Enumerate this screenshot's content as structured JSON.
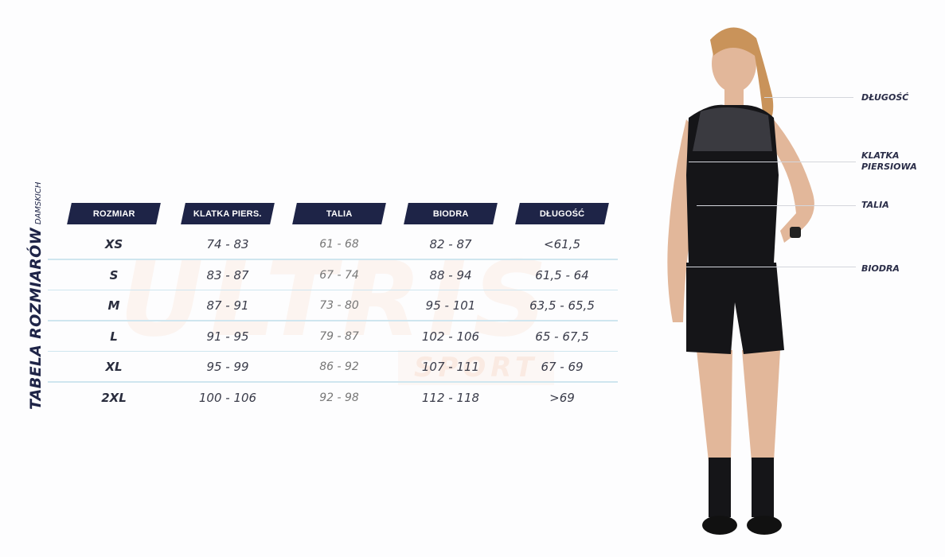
{
  "title": {
    "main": "TABELA ROZMIARÓW",
    "sub": "DAMSKICH"
  },
  "watermark": {
    "main": "ULTRIS",
    "sub": "SPORT"
  },
  "table": {
    "headers": [
      "ROZMIAR",
      "KLATKA PIERS.",
      "TALIA",
      "BIODRA",
      "DŁUGOŚĆ"
    ],
    "rows": [
      [
        "XS",
        "74 - 83",
        "61 - 68",
        "82 - 87",
        "<61,5"
      ],
      [
        "S",
        "83 - 87",
        "67 - 74",
        "88 - 94",
        "61,5 - 64"
      ],
      [
        "M",
        "87 - 91",
        "73 - 80",
        "95 - 101",
        "63,5 - 65,5"
      ],
      [
        "L",
        "91 - 95",
        "79 - 87",
        "102 - 106",
        "65 - 67,5"
      ],
      [
        "XL",
        "95 - 99",
        "86 - 92",
        "107 - 111",
        "67 - 69"
      ],
      [
        "2XL",
        "100 - 106",
        "92 - 98",
        "112 - 118",
        ">69"
      ]
    ]
  },
  "measurements": {
    "length": "DŁUGOŚĆ",
    "chest_1": "KLATKA",
    "chest_2": "PIERSIOWA",
    "waist": "TALIA",
    "hips": "BIODRA"
  },
  "colors": {
    "header_bg": "#1e2447",
    "separator": "#cfe6ef"
  }
}
